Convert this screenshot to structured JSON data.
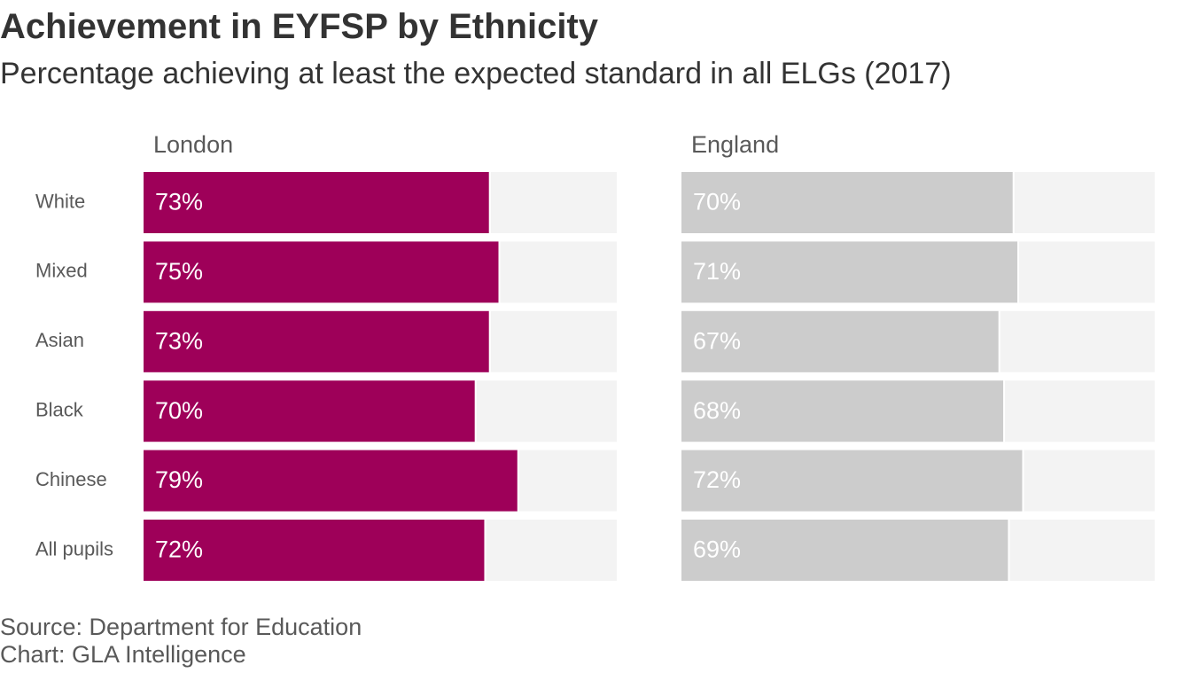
{
  "header": {
    "title": "Achievement in EYFSP by Ethnicity",
    "subtitle": "Percentage achieving at least the expected standard in all ELGs (2017)"
  },
  "footer": {
    "source": "Source: Department for Education",
    "credit": "Chart: GLA Intelligence"
  },
  "chart_data": {
    "type": "bar",
    "orientation": "horizontal",
    "title": "Achievement in EYFSP by Ethnicity",
    "subtitle": "Percentage achieving at least the expected standard in all ELGs (2017)",
    "categories": [
      "White",
      "Mixed",
      "Asian",
      "Black",
      "Chinese",
      "All pupils"
    ],
    "xlim": [
      0,
      100
    ],
    "grid": false,
    "legend": "none",
    "series": [
      {
        "name": "London",
        "values": [
          73,
          75,
          73,
          70,
          79,
          72
        ],
        "labels": [
          "73%",
          "75%",
          "73%",
          "70%",
          "79%",
          "72%"
        ],
        "color": "#9e0059"
      },
      {
        "name": "England",
        "values": [
          70,
          71,
          67,
          68,
          72,
          69
        ],
        "labels": [
          "70%",
          "71%",
          "67%",
          "68%",
          "72%",
          "69%"
        ],
        "color": "#cccccc"
      }
    ],
    "track_color": "#f3f3f3"
  }
}
